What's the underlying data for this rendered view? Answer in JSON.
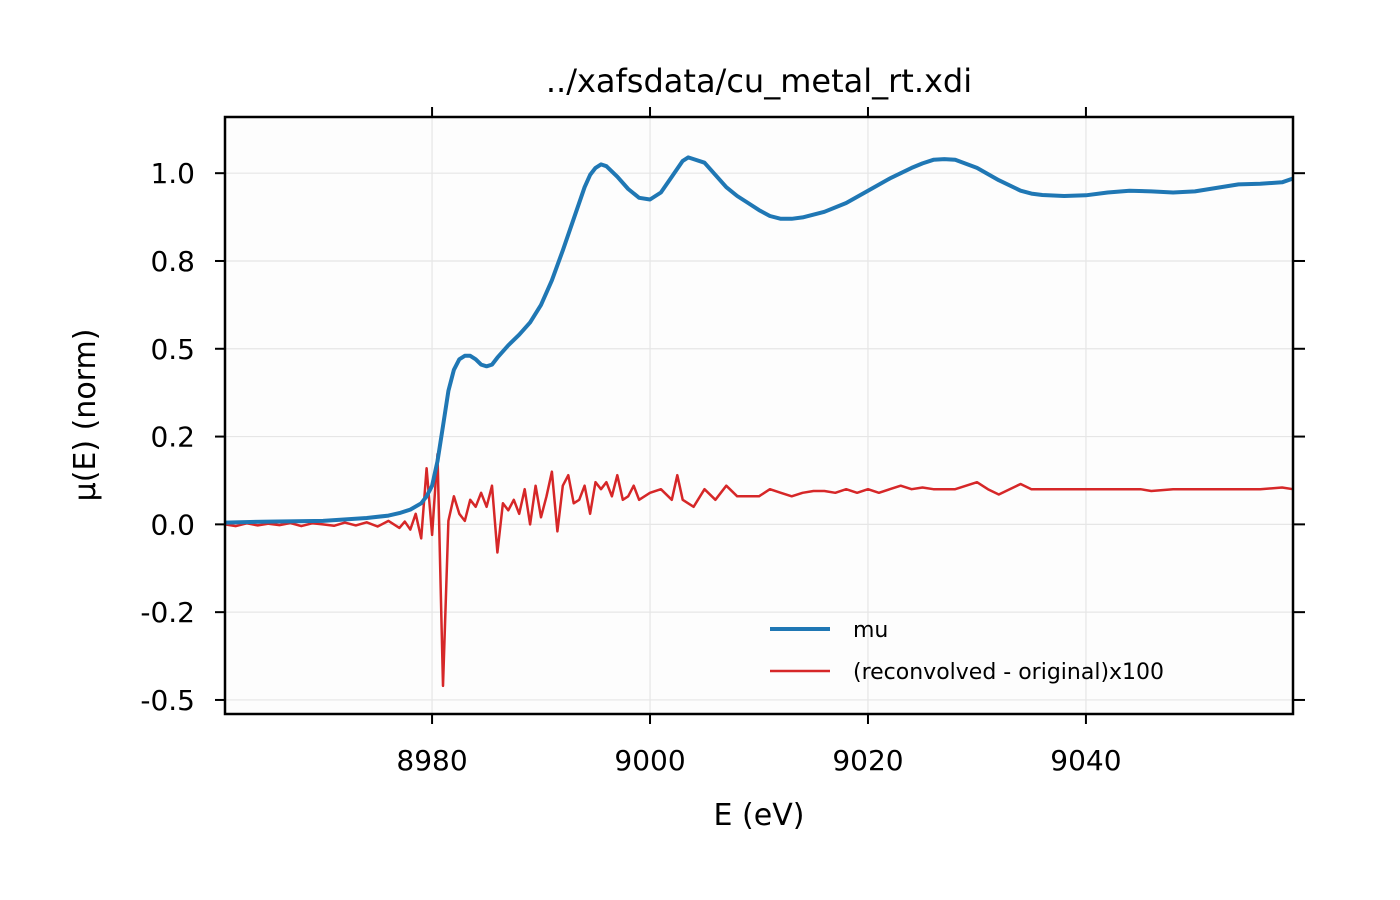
{
  "chart_data": {
    "type": "line",
    "title": "../xafsdata/cu_metal_rt.xdi",
    "xlabel": "E (eV)",
    "ylabel": "μ(E) (norm)",
    "xlim": [
      8961,
      9059
    ],
    "ylim": [
      -0.54,
      1.16
    ],
    "x_ticks": [
      8980,
      9000,
      9020,
      9040
    ],
    "x_tick_labels": [
      "8980",
      "9000",
      "9020",
      "9040"
    ],
    "y_ticks": [
      -0.5,
      -0.25,
      0.0,
      0.25,
      0.5,
      0.75,
      1.0
    ],
    "y_tick_labels": [
      "-0.5",
      "-0.2",
      "0.0",
      "0.2",
      "0.5",
      "0.8",
      "1.0"
    ],
    "grid": true,
    "legend_position": "lower-right",
    "series": [
      {
        "name": "mu",
        "color": "#1f77b4",
        "x": [
          8961,
          8965,
          8970,
          8974,
          8976,
          8977,
          8978,
          8979,
          8979.5,
          8980,
          8980.5,
          8981,
          8981.5,
          8982,
          8982.5,
          8983,
          8983.5,
          8984,
          8984.5,
          8985,
          8985.5,
          8986,
          8987,
          8988,
          8989,
          8990,
          8991,
          8992,
          8993,
          8994,
          8994.5,
          8995,
          8995.5,
          8996,
          8997,
          8998,
          8999,
          9000,
          9001,
          9002,
          9003,
          9003.5,
          9004,
          9005,
          9006,
          9007,
          9008,
          9009,
          9010,
          9011,
          9012,
          9013,
          9014,
          9016,
          9018,
          9020,
          9022,
          9024,
          9025,
          9026,
          9027,
          9028,
          9030,
          9032,
          9034,
          9035,
          9036,
          9038,
          9040,
          9042,
          9044,
          9046,
          9048,
          9050,
          9052,
          9054,
          9056,
          9058,
          9059
        ],
        "y": [
          0.005,
          0.008,
          0.01,
          0.018,
          0.025,
          0.032,
          0.042,
          0.06,
          0.08,
          0.11,
          0.18,
          0.28,
          0.38,
          0.44,
          0.47,
          0.48,
          0.48,
          0.47,
          0.455,
          0.45,
          0.455,
          0.475,
          0.51,
          0.54,
          0.575,
          0.625,
          0.695,
          0.78,
          0.87,
          0.96,
          0.995,
          1.015,
          1.025,
          1.02,
          0.99,
          0.955,
          0.93,
          0.925,
          0.945,
          0.99,
          1.035,
          1.045,
          1.04,
          1.03,
          0.995,
          0.96,
          0.935,
          0.915,
          0.895,
          0.878,
          0.87,
          0.87,
          0.874,
          0.89,
          0.915,
          0.95,
          0.985,
          1.015,
          1.028,
          1.038,
          1.04,
          1.038,
          1.015,
          0.98,
          0.95,
          0.942,
          0.938,
          0.935,
          0.937,
          0.945,
          0.95,
          0.948,
          0.945,
          0.948,
          0.958,
          0.968,
          0.97,
          0.974,
          0.985
        ]
      },
      {
        "name": "(reconvolved - original)x100",
        "color": "#d62728",
        "x": [
          8961,
          8962,
          8963,
          8964,
          8965,
          8966,
          8967,
          8968,
          8969,
          8970,
          8971,
          8972,
          8973,
          8974,
          8975,
          8976,
          8977,
          8977.5,
          8978,
          8978.5,
          8979,
          8979.5,
          8980,
          8980.5,
          8981,
          8981.5,
          8982,
          8982.5,
          8983,
          8983.5,
          8984,
          8984.5,
          8985,
          8985.5,
          8986,
          8986.5,
          8987,
          8987.5,
          8988,
          8988.5,
          8989,
          8989.5,
          8990,
          8990.5,
          8991,
          8991.5,
          8992,
          8992.5,
          8993,
          8993.5,
          8994,
          8994.5,
          8995,
          8995.5,
          8996,
          8996.5,
          8997,
          8997.5,
          8998,
          8998.5,
          8999,
          9000,
          9001,
          9002,
          9002.5,
          9003,
          9004,
          9005,
          9006,
          9007,
          9008,
          9010,
          9011,
          9012,
          9013,
          9014,
          9015,
          9016,
          9017,
          9018,
          9019,
          9020,
          9021,
          9022,
          9023,
          9024,
          9025,
          9026,
          9027,
          9028,
          9029,
          9030,
          9031,
          9032,
          9033,
          9034,
          9035,
          9037,
          9039,
          9041,
          9043,
          9045,
          9046,
          9048,
          9050,
          9052,
          9054,
          9056,
          9058,
          9059
        ],
        "y": [
          0.0,
          -0.005,
          0.003,
          -0.003,
          0.002,
          -0.002,
          0.004,
          -0.005,
          0.003,
          0.0,
          -0.004,
          0.005,
          -0.003,
          0.006,
          -0.006,
          0.01,
          -0.01,
          0.008,
          -0.015,
          0.03,
          -0.04,
          0.16,
          -0.03,
          0.2,
          -0.46,
          0.01,
          0.08,
          0.03,
          0.01,
          0.07,
          0.05,
          0.09,
          0.05,
          0.11,
          -0.08,
          0.06,
          0.04,
          0.07,
          0.03,
          0.1,
          0.0,
          0.11,
          0.02,
          0.08,
          0.15,
          -0.02,
          0.11,
          0.14,
          0.06,
          0.07,
          0.11,
          0.03,
          0.12,
          0.1,
          0.12,
          0.08,
          0.14,
          0.07,
          0.08,
          0.11,
          0.07,
          0.09,
          0.1,
          0.07,
          0.14,
          0.07,
          0.05,
          0.1,
          0.07,
          0.11,
          0.08,
          0.08,
          0.1,
          0.09,
          0.08,
          0.09,
          0.095,
          0.095,
          0.09,
          0.1,
          0.09,
          0.1,
          0.09,
          0.1,
          0.11,
          0.1,
          0.105,
          0.1,
          0.1,
          0.1,
          0.11,
          0.12,
          0.1,
          0.085,
          0.1,
          0.115,
          0.1,
          0.1,
          0.1,
          0.1,
          0.1,
          0.1,
          0.095,
          0.1,
          0.1,
          0.1,
          0.1,
          0.1,
          0.105,
          0.1
        ]
      }
    ]
  }
}
